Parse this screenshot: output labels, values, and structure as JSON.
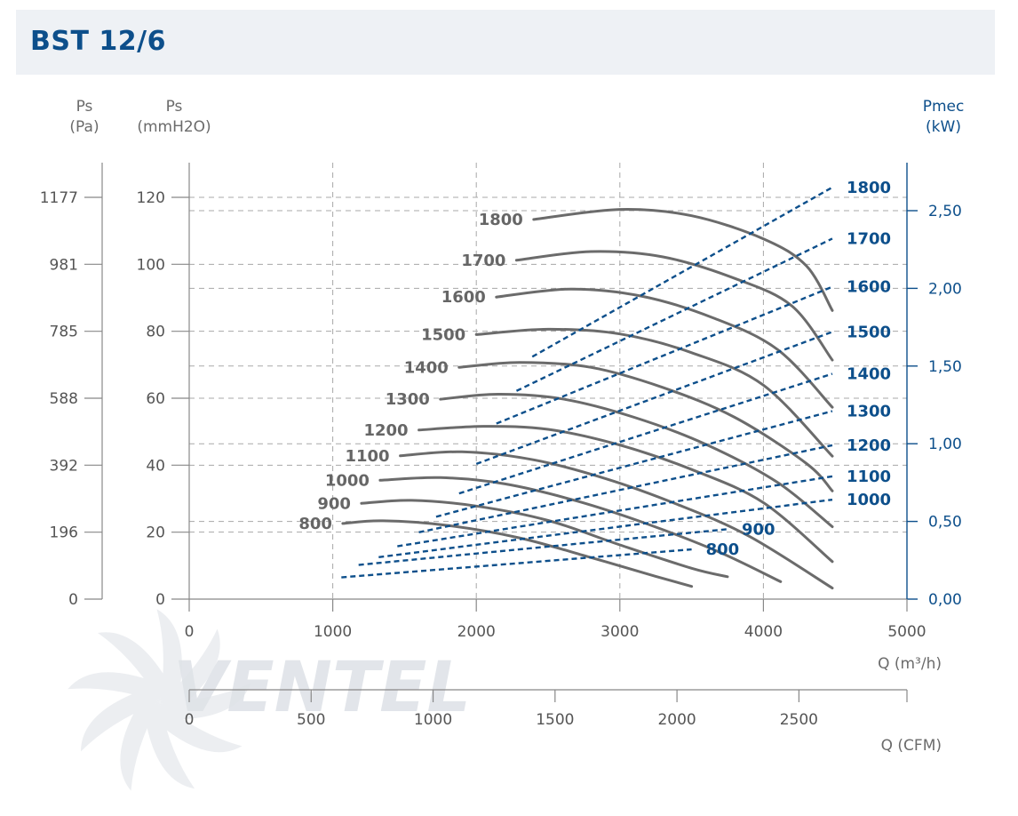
{
  "title": "BST 12/6",
  "chart_data": {
    "type": "line",
    "title": "BST 12/6",
    "left_axes": [
      {
        "label_line1": "Ps",
        "label_line2": "(Pa)",
        "ticks": [
          "0",
          "196",
          "392",
          "588",
          "785",
          "981",
          "1177"
        ]
      },
      {
        "label_line1": "Ps",
        "label_line2": "(mmH2O)",
        "ticks": [
          "0",
          "20",
          "40",
          "60",
          "80",
          "100",
          "120"
        ]
      }
    ],
    "right_axis": {
      "label_line1": "Pmec",
      "label_line2": "(kW)",
      "ticks": [
        "0,00",
        "0,50",
        "1,00",
        "1,50",
        "2,00",
        "2,50"
      ],
      "range": [
        0,
        2.8
      ]
    },
    "x_axis": {
      "label": "Q (m³/h)",
      "ticks": [
        "0",
        "1000",
        "2000",
        "3000",
        "4000",
        "5000"
      ],
      "range": [
        0,
        5000
      ]
    },
    "x_axis_cfm": {
      "label": "Q (CFM)",
      "ticks": [
        "0",
        "500",
        "1000",
        "1500",
        "2000",
        "2500"
      ],
      "range": [
        0,
        2943
      ]
    },
    "ylim_mmh2o": [
      0,
      120
    ],
    "grid": "dashed",
    "pressure_series": [
      {
        "name": "800",
        "points": [
          [
            1070,
            22.6
          ],
          [
            1350,
            23.4
          ],
          [
            1800,
            22
          ],
          [
            2300,
            18.3
          ],
          [
            2800,
            12.4
          ],
          [
            3250,
            6.8
          ],
          [
            3500,
            3.8
          ]
        ]
      },
      {
        "name": "900",
        "points": [
          [
            1200,
            28.6
          ],
          [
            1550,
            29.5
          ],
          [
            2000,
            27.8
          ],
          [
            2500,
            23.5
          ],
          [
            3000,
            16.2
          ],
          [
            3500,
            9.2
          ],
          [
            3750,
            6.7
          ]
        ]
      },
      {
        "name": "1000",
        "points": [
          [
            1330,
            35.5
          ],
          [
            1750,
            36.3
          ],
          [
            2200,
            34.4
          ],
          [
            2700,
            29.3
          ],
          [
            3200,
            22.3
          ],
          [
            3700,
            13.9
          ],
          [
            4120,
            5.2
          ]
        ]
      },
      {
        "name": "1100",
        "points": [
          [
            1470,
            42.8
          ],
          [
            1900,
            44
          ],
          [
            2400,
            41.6
          ],
          [
            2900,
            36
          ],
          [
            3400,
            28.3
          ],
          [
            3900,
            18.8
          ],
          [
            4480,
            3.3
          ]
        ]
      },
      {
        "name": "1200",
        "points": [
          [
            1600,
            50.5
          ],
          [
            2050,
            51.6
          ],
          [
            2500,
            50.7
          ],
          [
            3000,
            46
          ],
          [
            3500,
            38.7
          ],
          [
            4000,
            28.8
          ],
          [
            4480,
            11.2
          ]
        ]
      },
      {
        "name": "1300",
        "points": [
          [
            1750,
            59.7
          ],
          [
            2150,
            61.2
          ],
          [
            2600,
            59.8
          ],
          [
            3100,
            54.3
          ],
          [
            3600,
            46.2
          ],
          [
            4100,
            34.8
          ],
          [
            4480,
            21.6
          ]
        ]
      },
      {
        "name": "1400",
        "points": [
          [
            1880,
            69.2
          ],
          [
            2300,
            70.7
          ],
          [
            2800,
            69.2
          ],
          [
            3300,
            63.2
          ],
          [
            3800,
            54.3
          ],
          [
            4300,
            40.5
          ],
          [
            4480,
            32.3
          ]
        ]
      },
      {
        "name": "1500",
        "points": [
          [
            2000,
            79
          ],
          [
            2500,
            80.6
          ],
          [
            3000,
            79.2
          ],
          [
            3500,
            73.6
          ],
          [
            4000,
            63.9
          ],
          [
            4480,
            42.7
          ]
        ]
      },
      {
        "name": "1600",
        "points": [
          [
            2140,
            90.2
          ],
          [
            2650,
            92.6
          ],
          [
            3150,
            90.5
          ],
          [
            3650,
            84
          ],
          [
            4100,
            74.5
          ],
          [
            4480,
            57.3
          ]
        ]
      },
      {
        "name": "1700",
        "points": [
          [
            2280,
            101.2
          ],
          [
            2800,
            103.8
          ],
          [
            3300,
            102.2
          ],
          [
            3800,
            95.8
          ],
          [
            4200,
            87.5
          ],
          [
            4480,
            71.4
          ]
        ]
      },
      {
        "name": "1800",
        "points": [
          [
            2400,
            113.4
          ],
          [
            3000,
            116.4
          ],
          [
            3500,
            114.5
          ],
          [
            4000,
            107.6
          ],
          [
            4300,
            99.5
          ],
          [
            4480,
            86.2
          ]
        ]
      }
    ],
    "power_series": [
      {
        "name": "800",
        "unit": "kW",
        "points": [
          [
            1060,
            0.14
          ],
          [
            3500,
            0.32
          ]
        ]
      },
      {
        "name": "900",
        "unit": "kW",
        "points": [
          [
            1180,
            0.22
          ],
          [
            3750,
            0.45
          ]
        ]
      },
      {
        "name": "1000",
        "unit": "kW",
        "points": [
          [
            1320,
            0.27
          ],
          [
            4480,
            0.64
          ]
        ]
      },
      {
        "name": "1100",
        "unit": "kW",
        "points": [
          [
            1450,
            0.34
          ],
          [
            4480,
            0.79
          ]
        ]
      },
      {
        "name": "1200",
        "unit": "kW",
        "points": [
          [
            1600,
            0.43
          ],
          [
            4480,
            0.99
          ]
        ]
      },
      {
        "name": "1300",
        "unit": "kW",
        "points": [
          [
            1720,
            0.53
          ],
          [
            4480,
            1.21
          ]
        ]
      },
      {
        "name": "1400",
        "unit": "kW",
        "points": [
          [
            1880,
            0.68
          ],
          [
            4480,
            1.45
          ]
        ]
      },
      {
        "name": "1500",
        "unit": "kW",
        "points": [
          [
            2000,
            0.87
          ],
          [
            4480,
            1.72
          ]
        ]
      },
      {
        "name": "1600",
        "unit": "kW",
        "points": [
          [
            2140,
            1.13
          ],
          [
            4480,
            2.01
          ]
        ]
      },
      {
        "name": "1700",
        "unit": "kW",
        "points": [
          [
            2280,
            1.34
          ],
          [
            4480,
            2.32
          ]
        ]
      },
      {
        "name": "1800",
        "unit": "kW",
        "points": [
          [
            2390,
            1.56
          ],
          [
            4480,
            2.65
          ]
        ]
      }
    ],
    "colors": {
      "pressure": "#6b6b6b",
      "power": "#0d4f8b",
      "title": "#0d4f8b",
      "grid": "#a8a8a8"
    }
  },
  "watermark": "VENTEL"
}
